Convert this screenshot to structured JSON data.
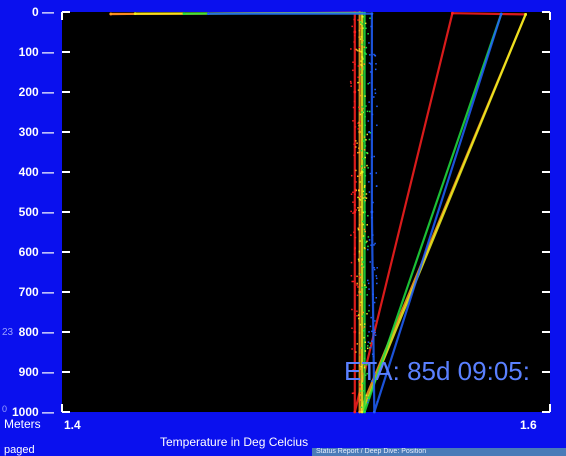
{
  "eta_text": "ETA: 85d 09:05:",
  "status": {
    "left_text": "paged",
    "bar_text": "Status Report / Deep Dive: Position"
  },
  "side_labels": {
    "meters": "Meters",
    "marker_1": "23",
    "marker_2": "0"
  },
  "colors": {
    "window_bg": "#0a10ee",
    "plot_bg": "#000000",
    "eta_text": "#5a80ff"
  },
  "chart_data": {
    "type": "scatter",
    "xlabel": "Temperature in Deg Celcius",
    "ylabel": "Meters",
    "xlim": [
      1.4,
      1.6
    ],
    "ylim": [
      1000,
      0
    ],
    "x_tick_labels": [
      "1.4",
      "1.6"
    ],
    "y_tick_labels": [
      "0",
      "100",
      "200",
      "300",
      "400",
      "500",
      "600",
      "700",
      "800",
      "900",
      "1000"
    ],
    "grid": false,
    "legend": "none",
    "series": [
      {
        "color": "#ff2020",
        "values": [
          {
            "x": 1.42,
            "y": 5
          },
          {
            "x": 1.52,
            "y": 2
          },
          {
            "x": 1.52,
            "y": 50
          },
          {
            "x": 1.52,
            "y": 200
          },
          {
            "x": 1.52,
            "y": 500
          },
          {
            "x": 1.52,
            "y": 800
          },
          {
            "x": 1.52,
            "y": 1000
          },
          {
            "x": 1.56,
            "y": 3
          },
          {
            "x": 1.59,
            "y": 6
          }
        ]
      },
      {
        "color": "#ffa020",
        "values": [
          {
            "x": 1.42,
            "y": 5
          },
          {
            "x": 1.522,
            "y": 2
          },
          {
            "x": 1.522,
            "y": 300
          },
          {
            "x": 1.522,
            "y": 700
          },
          {
            "x": 1.522,
            "y": 1000
          },
          {
            "x": 1.59,
            "y": 6
          }
        ]
      },
      {
        "color": "#f0f020",
        "values": [
          {
            "x": 1.43,
            "y": 4
          },
          {
            "x": 1.523,
            "y": 3
          },
          {
            "x": 1.523,
            "y": 400
          },
          {
            "x": 1.523,
            "y": 1000
          },
          {
            "x": 1.59,
            "y": 6
          }
        ]
      },
      {
        "color": "#20e040",
        "values": [
          {
            "x": 1.45,
            "y": 4
          },
          {
            "x": 1.524,
            "y": 3
          },
          {
            "x": 1.524,
            "y": 500
          },
          {
            "x": 1.524,
            "y": 1000
          },
          {
            "x": 1.58,
            "y": 5
          }
        ]
      },
      {
        "color": "#2060ff",
        "values": [
          {
            "x": 1.46,
            "y": 4
          },
          {
            "x": 1.527,
            "y": 4
          },
          {
            "x": 1.527,
            "y": 500
          },
          {
            "x": 1.528,
            "y": 1000
          },
          {
            "x": 1.58,
            "y": 5
          }
        ]
      }
    ]
  }
}
